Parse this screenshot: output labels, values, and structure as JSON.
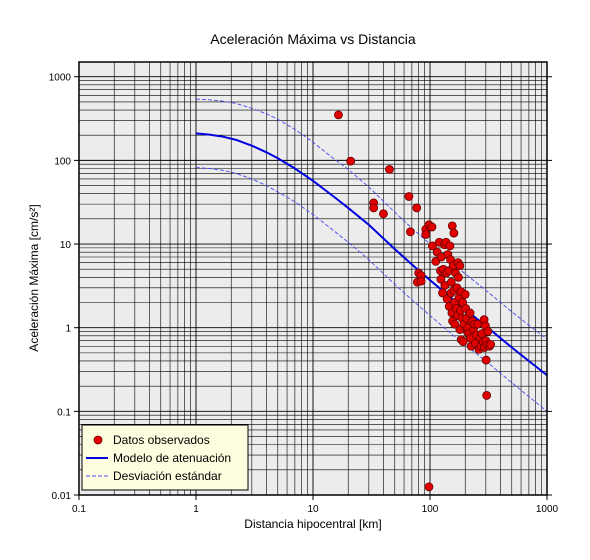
{
  "chart_data": {
    "type": "scatter",
    "title": "Aceleración Máxima vs Distancia",
    "xlabel": "Distancia hipocentral [km]",
    "ylabel": "Aceleración Máxima [cm/s²]",
    "x_scale": "log",
    "y_scale": "log",
    "xlim": [
      0.1,
      1000
    ],
    "ylim": [
      0.01,
      1500
    ],
    "grid": true,
    "legend_position": "bottom-left",
    "x_ticks": [
      {
        "value": 0.1,
        "label": "0.1"
      },
      {
        "value": 1,
        "label": "1"
      },
      {
        "value": 10,
        "label": "10"
      },
      {
        "value": 100,
        "label": "100"
      },
      {
        "value": 1000,
        "label": "1000"
      }
    ],
    "y_ticks": [
      {
        "value": 0.01,
        "label": "0.01"
      },
      {
        "value": 0.1,
        "label": "0.1"
      },
      {
        "value": 1,
        "label": "1"
      },
      {
        "value": 10,
        "label": "10"
      },
      {
        "value": 100,
        "label": "100"
      },
      {
        "value": 1000,
        "label": "1000"
      }
    ],
    "series": [
      {
        "name": "Datos observados",
        "kind": "scatter",
        "color": "#e00000",
        "points": [
          [
            16.5,
            350
          ],
          [
            21,
            98
          ],
          [
            33,
            31
          ],
          [
            33,
            27
          ],
          [
            40,
            23
          ],
          [
            45,
            78
          ],
          [
            66,
            37
          ],
          [
            68,
            14
          ],
          [
            77,
            27
          ],
          [
            80,
            4.5
          ],
          [
            78,
            3.5
          ],
          [
            84,
            4.2
          ],
          [
            84,
            3.6
          ],
          [
            92,
            15
          ],
          [
            92,
            13
          ],
          [
            98,
            17
          ],
          [
            104,
            16
          ],
          [
            105,
            9.5
          ],
          [
            112,
            6.2
          ],
          [
            115,
            8
          ],
          [
            120,
            10.5
          ],
          [
            123,
            4.8
          ],
          [
            124,
            3.8
          ],
          [
            125,
            7
          ],
          [
            128,
            2.6
          ],
          [
            130,
            5
          ],
          [
            133,
            9.8
          ],
          [
            134,
            3.2
          ],
          [
            137,
            10.5
          ],
          [
            138,
            4.5
          ],
          [
            140,
            2.2
          ],
          [
            142,
            7.5
          ],
          [
            145,
            4.8
          ],
          [
            146,
            1.8
          ],
          [
            148,
            9.5
          ],
          [
            150,
            6.5
          ],
          [
            151,
            2.6
          ],
          [
            152,
            3.5
          ],
          [
            154,
            1.5
          ],
          [
            155,
            16.5
          ],
          [
            156,
            1.2
          ],
          [
            158,
            5.5
          ],
          [
            160,
            2.8
          ],
          [
            160,
            13.5
          ],
          [
            162,
            2
          ],
          [
            163,
            1.1
          ],
          [
            165,
            4.5
          ],
          [
            168,
            1.7
          ],
          [
            170,
            3
          ],
          [
            172,
            1.4
          ],
          [
            174,
            6
          ],
          [
            175,
            4
          ],
          [
            177,
            2.3
          ],
          [
            180,
            5.5
          ],
          [
            180,
            0.95
          ],
          [
            182,
            1.6
          ],
          [
            184,
            2.7
          ],
          [
            185,
            0.72
          ],
          [
            188,
            1.3
          ],
          [
            190,
            2
          ],
          [
            192,
            0.68
          ],
          [
            195,
            1.1
          ],
          [
            200,
            2.5
          ],
          [
            202,
            1.7
          ],
          [
            205,
            1.3
          ],
          [
            208,
            0.9
          ],
          [
            210,
            1
          ],
          [
            215,
            0.85
          ],
          [
            220,
            1.5
          ],
          [
            222,
            0.75
          ],
          [
            225,
            0.6
          ],
          [
            230,
            1.2
          ],
          [
            235,
            0.95
          ],
          [
            240,
            1.1
          ],
          [
            245,
            0.65
          ],
          [
            248,
            0.82
          ],
          [
            255,
            1.1
          ],
          [
            262,
            0.55
          ],
          [
            268,
            0.75
          ],
          [
            272,
            0.6
          ],
          [
            278,
            0.85
          ],
          [
            285,
            0.68
          ],
          [
            290,
            1.25
          ],
          [
            292,
            0.58
          ],
          [
            298,
            1.05
          ],
          [
            300,
            0.7
          ],
          [
            302,
            0.41
          ],
          [
            307,
            0.62
          ],
          [
            312,
            0.9
          ],
          [
            322,
            0.6
          ],
          [
            330,
            0.63
          ],
          [
            305,
            0.155
          ],
          [
            98,
            0.0125
          ]
        ]
      },
      {
        "name": "Modelo de atenuación",
        "kind": "line",
        "color": "#0000e0",
        "x": [
          1,
          1.3,
          1.7,
          2.2,
          3,
          4,
          5,
          7,
          10,
          15,
          20,
          30,
          50,
          70,
          100,
          150,
          200,
          300,
          500,
          700,
          1000
        ],
        "y": [
          210,
          203,
          192,
          176,
          150,
          125,
          106,
          80,
          57,
          37,
          27,
          17,
          8.7,
          5.7,
          3.7,
          2.3,
          1.65,
          1.05,
          0.58,
          0.4,
          0.27
        ]
      },
      {
        "name": "Desviación estándar",
        "kind": "dashed-line",
        "color": "#4a4af0",
        "x": [
          1,
          1.3,
          1.7,
          2.2,
          3,
          4,
          5,
          7,
          10,
          15,
          20,
          30,
          50,
          70,
          100,
          150,
          200,
          300,
          500,
          700,
          1000
        ],
        "y": [
          540,
          530,
          510,
          480,
          420,
          360,
          310,
          235,
          165,
          105,
          78,
          48,
          24,
          15.5,
          10,
          6.1,
          4.4,
          2.8,
          1.55,
          1.07,
          0.73
        ]
      },
      {
        "name": "",
        "kind": "dashed-line",
        "color": "#4a4af0",
        "x": [
          1,
          1.3,
          1.7,
          2.2,
          3,
          4,
          5,
          7,
          10,
          15,
          20,
          30,
          50,
          70,
          100,
          150,
          200,
          300,
          500,
          700,
          1000
        ],
        "y": [
          82,
          80,
          76,
          70,
          60,
          50,
          42,
          32,
          22.5,
          14.5,
          10.5,
          6.5,
          3.3,
          2.15,
          1.4,
          0.86,
          0.62,
          0.4,
          0.22,
          0.15,
          0.1
        ]
      }
    ],
    "legend": [
      {
        "label": "Datos observados",
        "marker": "dot",
        "color": "#e00000"
      },
      {
        "label": "Modelo de atenuación",
        "marker": "solid-line",
        "color": "#0000e0"
      },
      {
        "label": "Desviación estándar",
        "marker": "dashed-line",
        "color": "#4a4af0"
      }
    ]
  }
}
